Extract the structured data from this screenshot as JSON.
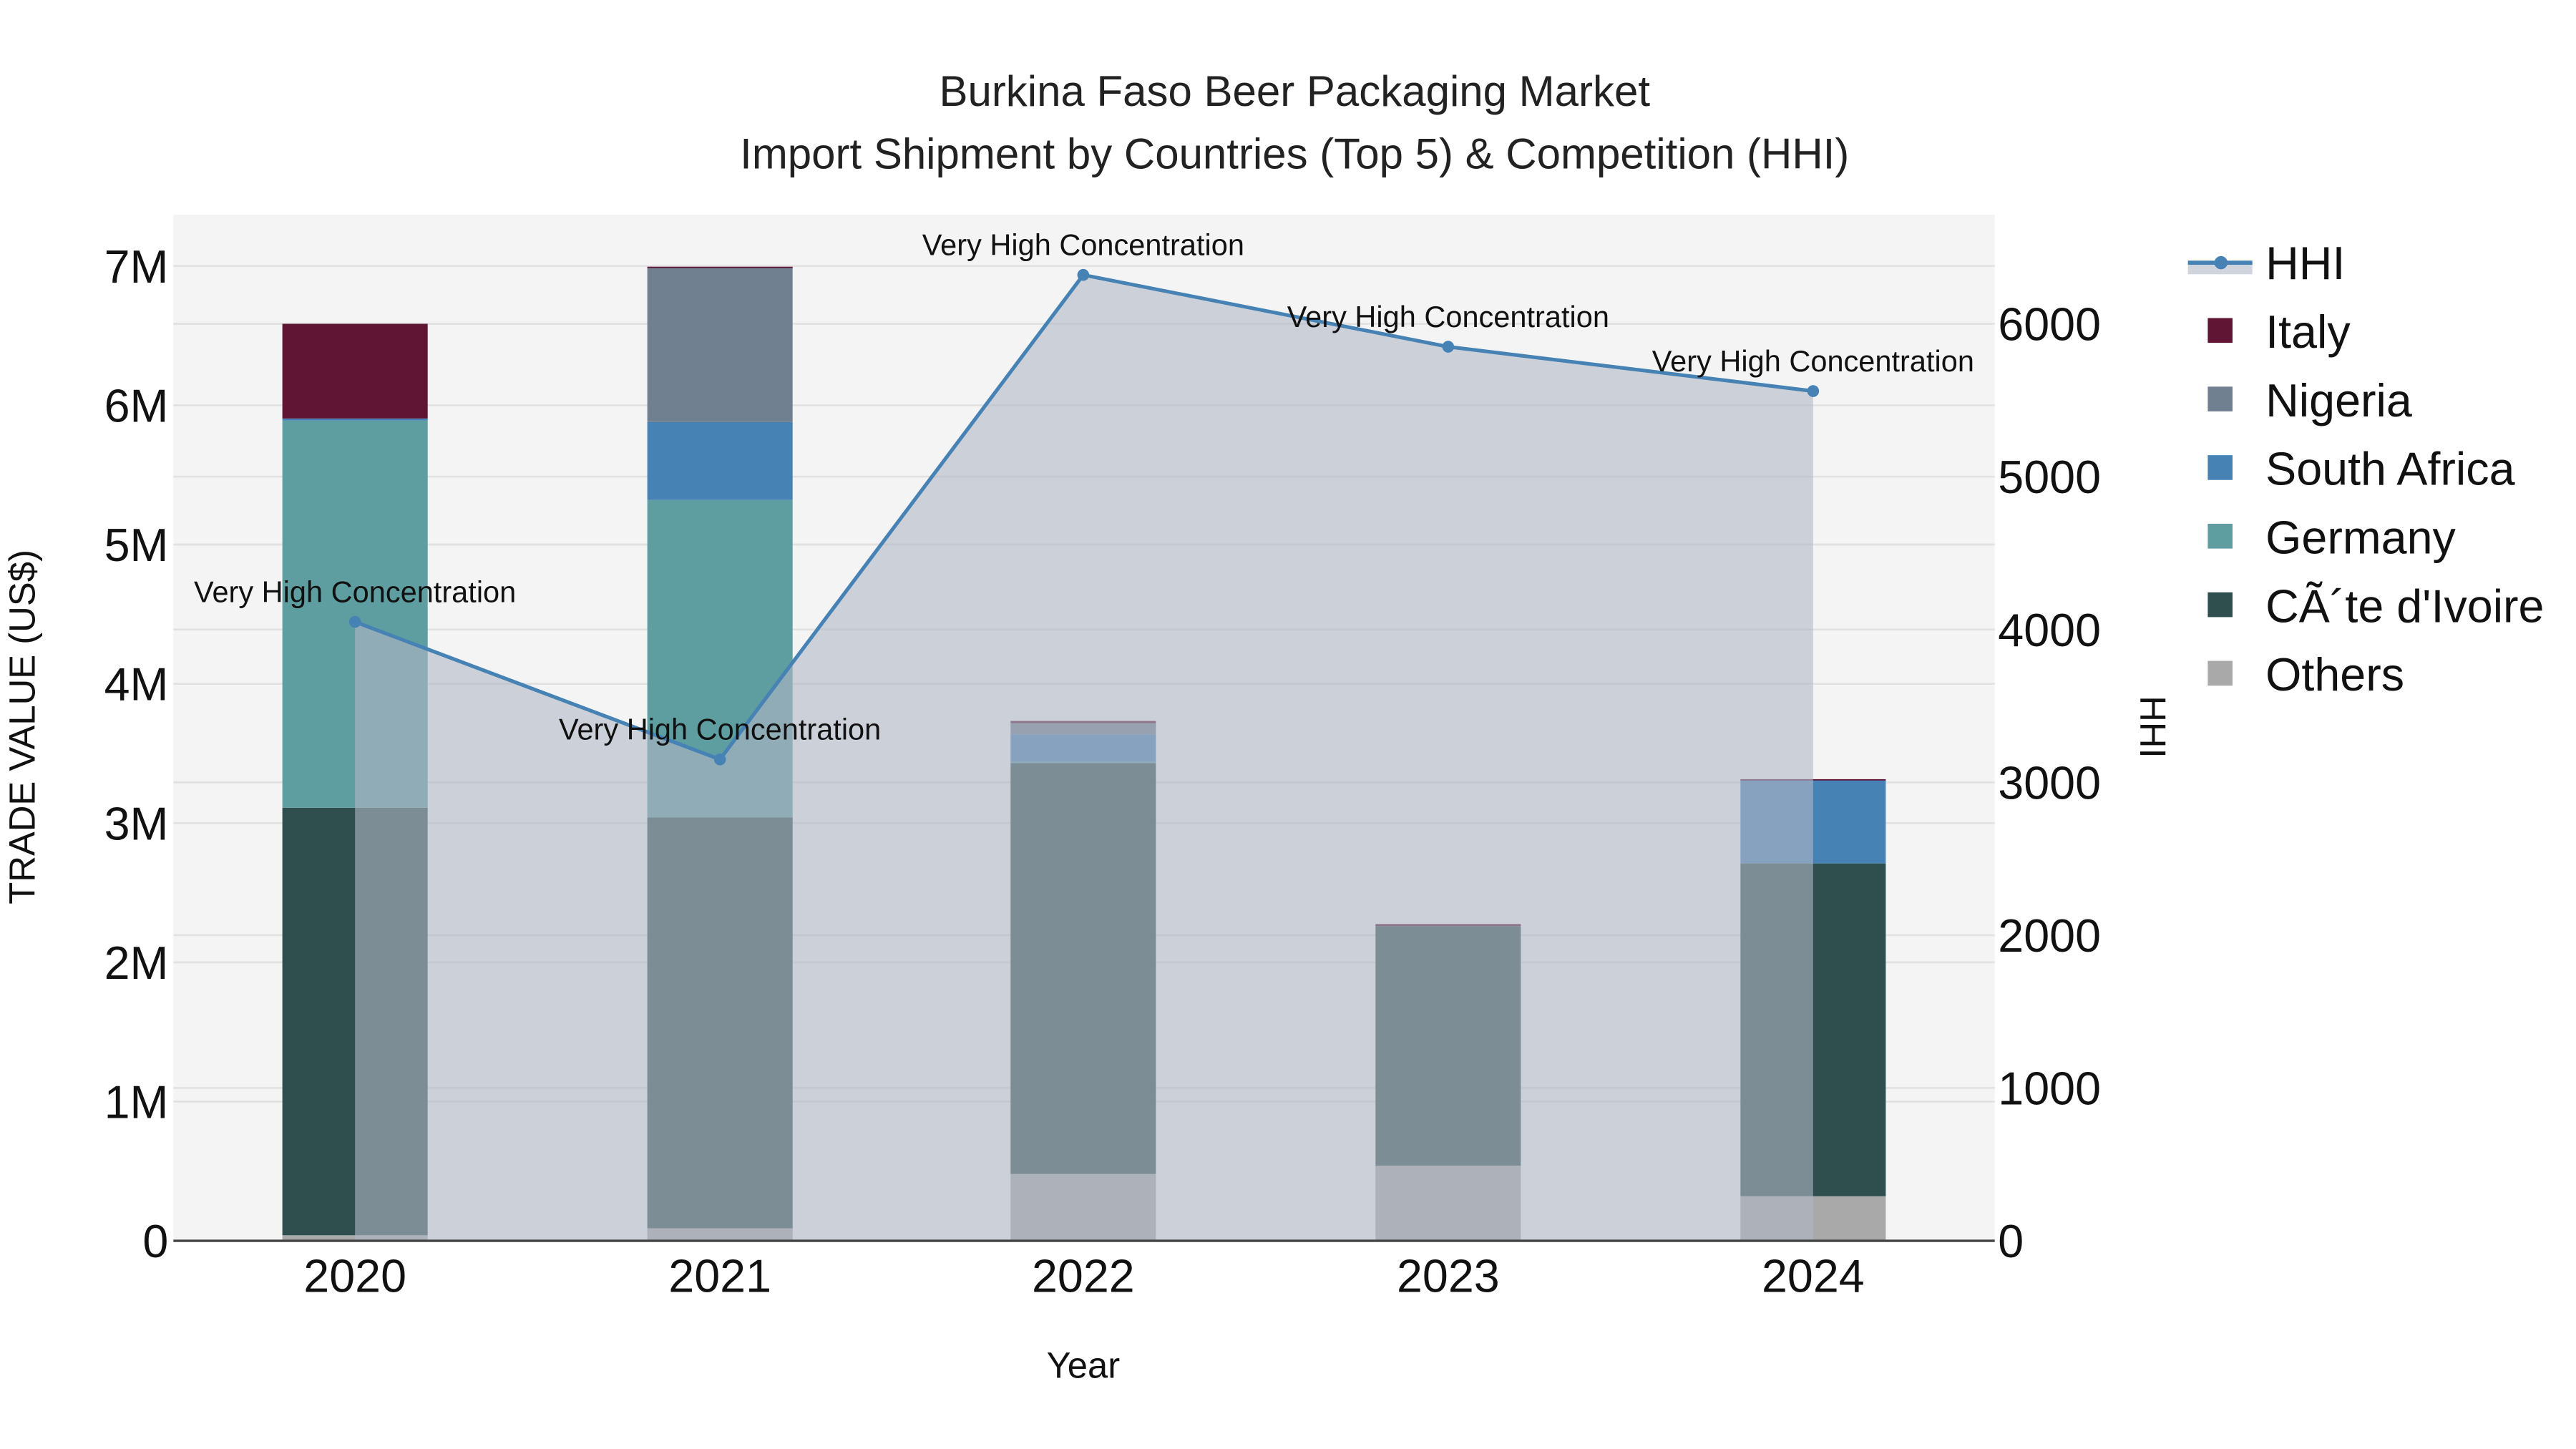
{
  "title": {
    "line1": "Burkina Faso Beer Packaging Market",
    "line2": "Import Shipment by Countries (Top 5) & Competition (HHI)"
  },
  "axes": {
    "x_title": "Year",
    "y_left_title": "TRADE VALUE (US$)",
    "y_right_title": "HHI",
    "y_left_ticks": [
      "0",
      "1M",
      "2M",
      "3M",
      "4M",
      "5M",
      "6M",
      "7M"
    ],
    "y_right_ticks": [
      "0",
      "1000",
      "2000",
      "3000",
      "4000",
      "5000",
      "6000"
    ],
    "x_ticks": [
      "2020",
      "2021",
      "2022",
      "2023",
      "2024"
    ]
  },
  "legend": {
    "items": [
      {
        "label": "HHI",
        "color": "#4682b4",
        "kind": "line"
      },
      {
        "label": "Italy",
        "color": "#601535",
        "kind": "box"
      },
      {
        "label": "Nigeria",
        "color": "#708090",
        "kind": "box"
      },
      {
        "label": "South Africa",
        "color": "#4682b4",
        "kind": "box"
      },
      {
        "label": "Germany",
        "color": "#5f9ea0",
        "kind": "box"
      },
      {
        "label": "CÃ´te d'Ivoire",
        "color": "#2f4f4f",
        "kind": "box"
      },
      {
        "label": "Others",
        "color": "#a9a9a9",
        "kind": "box"
      }
    ]
  },
  "colors": {
    "plot_bg": "#f4f4f4",
    "grid": "#e2e2e2",
    "hhi_line": "#4682b4",
    "hhi_fill": "rgba(176,184,198,0.6)"
  },
  "chart_data": {
    "type": "bar",
    "title": "Burkina Faso Beer Packaging Market — Import Shipment by Countries (Top 5) & Competition (HHI)",
    "xlabel": "Year",
    "ylabel": "TRADE VALUE (US$)",
    "y2label": "HHI",
    "categories": [
      "2020",
      "2021",
      "2022",
      "2023",
      "2024"
    ],
    "stacked": true,
    "ylim": [
      0,
      7400000
    ],
    "y2lim": [
      0,
      6700
    ],
    "grid": true,
    "legend_position": "right",
    "series": [
      {
        "name": "Others",
        "color": "#a9a9a9",
        "values": [
          40000,
          90000,
          480000,
          540000,
          320000
        ]
      },
      {
        "name": "CÃ´te d'Ivoire",
        "color": "#2f4f4f",
        "values": [
          3070000,
          2950000,
          2950000,
          1720000,
          2390000
        ]
      },
      {
        "name": "Germany",
        "color": "#5f9ea0",
        "values": [
          2780000,
          2280000,
          10000,
          0,
          0
        ]
      },
      {
        "name": "South Africa",
        "color": "#4682b4",
        "values": [
          15000,
          560000,
          195000,
          0,
          600000
        ]
      },
      {
        "name": "Nigeria",
        "color": "#708090",
        "values": [
          0,
          1110000,
          83000,
          0,
          0
        ]
      },
      {
        "name": "Italy",
        "color": "#601535",
        "values": [
          680000,
          5000,
          15000,
          15000,
          5000
        ]
      }
    ],
    "line_series": {
      "name": "HHI",
      "axis": "right",
      "type": "area-line",
      "color": "#4682b4",
      "values": [
        4050,
        3150,
        6320,
        5850,
        5560
      ],
      "annotations": [
        "Very High Concentration",
        "Very High Concentration",
        "Very High Concentration",
        "Very High Concentration",
        "Very High Concentration"
      ]
    }
  }
}
